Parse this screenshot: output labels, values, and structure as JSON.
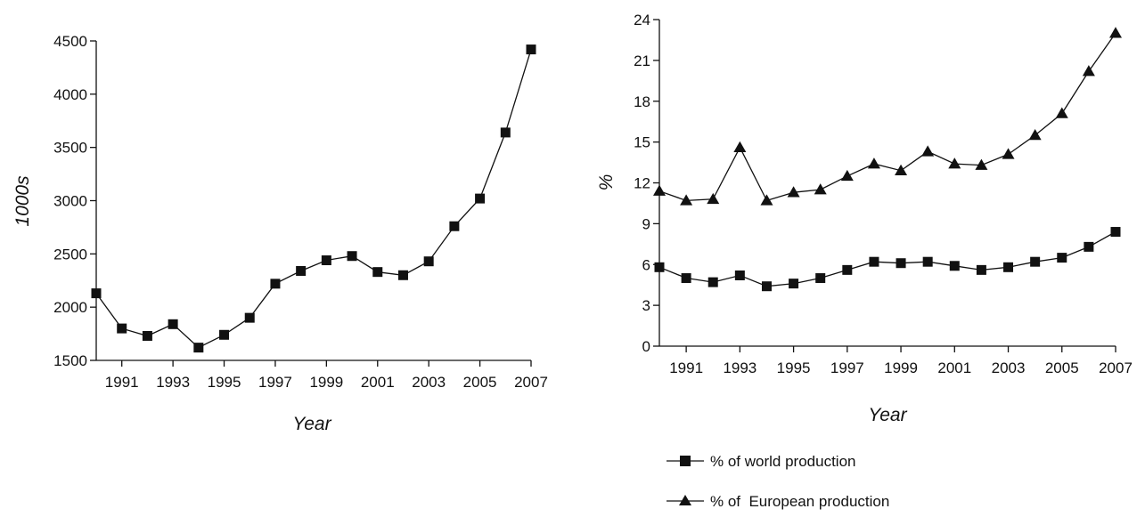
{
  "chart_data": [
    {
      "type": "line",
      "title": "",
      "xlabel": "Year",
      "ylabel": "1000s",
      "x": [
        1990,
        1991,
        1992,
        1993,
        1994,
        1995,
        1996,
        1997,
        1998,
        1999,
        2000,
        2001,
        2002,
        2003,
        2004,
        2005,
        2006,
        2007
      ],
      "x_tick_values": [
        1991,
        1993,
        1995,
        1997,
        1999,
        2001,
        2003,
        2005,
        2007
      ],
      "x_tick_labels": [
        "1991",
        "1993",
        "1995",
        "1997",
        "1999",
        "2001",
        "2003",
        "2005",
        "2007"
      ],
      "xlim": [
        1990,
        2007
      ],
      "y_tick_values": [
        1500,
        2000,
        2500,
        3000,
        3500,
        4000,
        4500
      ],
      "y_tick_labels": [
        "1500",
        "2000",
        "2500",
        "3000",
        "3500",
        "4000",
        "4500"
      ],
      "ylim": [
        1500,
        4500
      ],
      "grid": false,
      "series": [
        {
          "name": "",
          "marker": "square",
          "values": [
            2130,
            1800,
            1730,
            1840,
            1620,
            1740,
            1900,
            2220,
            2340,
            2440,
            2480,
            2330,
            2300,
            2430,
            2760,
            3020,
            3640,
            4420
          ]
        }
      ]
    },
    {
      "type": "line",
      "title": "",
      "xlabel": "Year",
      "ylabel": "%",
      "x": [
        1990,
        1991,
        1992,
        1993,
        1994,
        1995,
        1996,
        1997,
        1998,
        1999,
        2000,
        2001,
        2002,
        2003,
        2004,
        2005,
        2006,
        2007
      ],
      "x_tick_values": [
        1991,
        1993,
        1995,
        1997,
        1999,
        2001,
        2003,
        2005,
        2007
      ],
      "x_tick_labels": [
        "1991",
        "1993",
        "1995",
        "1997",
        "1999",
        "2001",
        "2003",
        "2005",
        "2007"
      ],
      "xlim": [
        1990,
        2007
      ],
      "y_tick_values": [
        0,
        3,
        6,
        9,
        12,
        15,
        18,
        21,
        24
      ],
      "y_tick_labels": [
        "0",
        "3",
        "6",
        "9",
        "12",
        "15",
        "18",
        "21",
        "24"
      ],
      "ylim": [
        0,
        24
      ],
      "grid": false,
      "legend_position": "bottom",
      "series": [
        {
          "name": "% of world production",
          "marker": "square",
          "values": [
            5.8,
            5.0,
            4.7,
            5.2,
            4.4,
            4.6,
            5.0,
            5.6,
            6.2,
            6.1,
            6.2,
            5.9,
            5.6,
            5.8,
            6.2,
            6.5,
            7.3,
            8.4
          ]
        },
        {
          "name": "% of  European production",
          "marker": "triangle",
          "values": [
            11.4,
            10.7,
            10.8,
            14.6,
            10.7,
            11.3,
            11.5,
            12.5,
            13.4,
            12.9,
            14.3,
            13.4,
            13.3,
            14.1,
            15.5,
            17.1,
            20.2,
            23.0
          ]
        }
      ]
    }
  ]
}
